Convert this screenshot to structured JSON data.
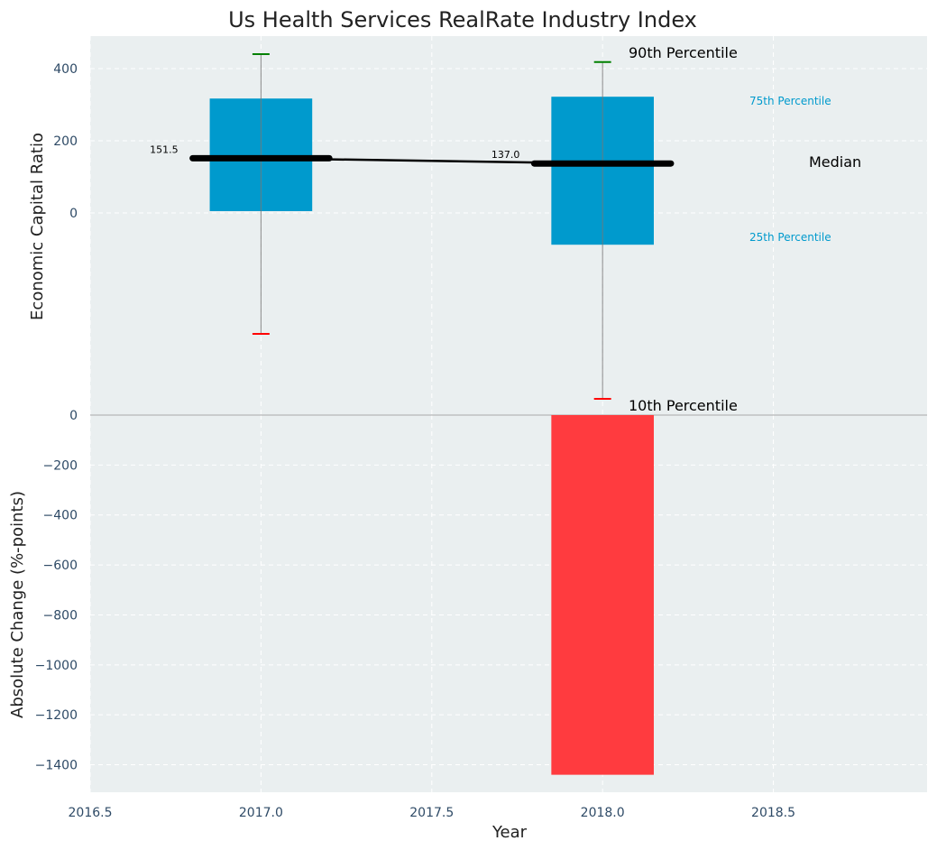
{
  "chart_data": {
    "type": "box",
    "title": "Us Health Services RealRate Industry Index",
    "xlabel": "Year",
    "x_ticks": [
      "2016.5",
      "2017.0",
      "2017.5",
      "2018.0",
      "2018.5"
    ],
    "x_tick_values": [
      2016.5,
      2017.0,
      2017.5,
      2018.0,
      2018.5
    ],
    "xlim": [
      2016.5,
      2018.95
    ],
    "top_panel": {
      "ylabel": "Economic Capital Ratio",
      "ylim": [
        -560,
        490
      ],
      "y_ticks": [
        "400",
        "200",
        "0"
      ],
      "y_tick_values": [
        400,
        200,
        0
      ],
      "grid": true,
      "boxes": [
        {
          "year": 2017,
          "p10": -335,
          "p25": 5,
          "median": 151.5,
          "p75": 317,
          "p90": 440,
          "median_label": "151.5"
        },
        {
          "year": 2018,
          "p10": -515,
          "p25": -88,
          "median": 137.0,
          "p75": 322,
          "p90": 418,
          "median_label": "137.0"
        }
      ],
      "legend_labels": {
        "p90": "90th Percentile",
        "p75": "75th Percentile",
        "median": "Median",
        "p25": "25th Percentile",
        "p10": "10th Percentile"
      }
    },
    "bottom_panel": {
      "ylabel": "Absolute Change (%-points)",
      "ylim": [
        -1510,
        0
      ],
      "y_ticks": [
        "0",
        "−200",
        "−400",
        "−600",
        "−800",
        "−1000",
        "−1200",
        "−1400"
      ],
      "y_tick_values": [
        0,
        -200,
        -400,
        -600,
        -800,
        -1000,
        -1200,
        -1400
      ],
      "grid": true,
      "bars": [
        {
          "year": 2018,
          "value": -1440
        }
      ]
    },
    "colors": {
      "box": "#009acd",
      "median": "#000000",
      "p90_cap": "#008000",
      "p10_cap": "#ff0000",
      "negative_bar": "#ff3b3f",
      "percentile_text": "#009acd",
      "panel_bg": "#eaeff0",
      "grid": "#ffffff",
      "tick_text": "#2e4a66"
    }
  }
}
